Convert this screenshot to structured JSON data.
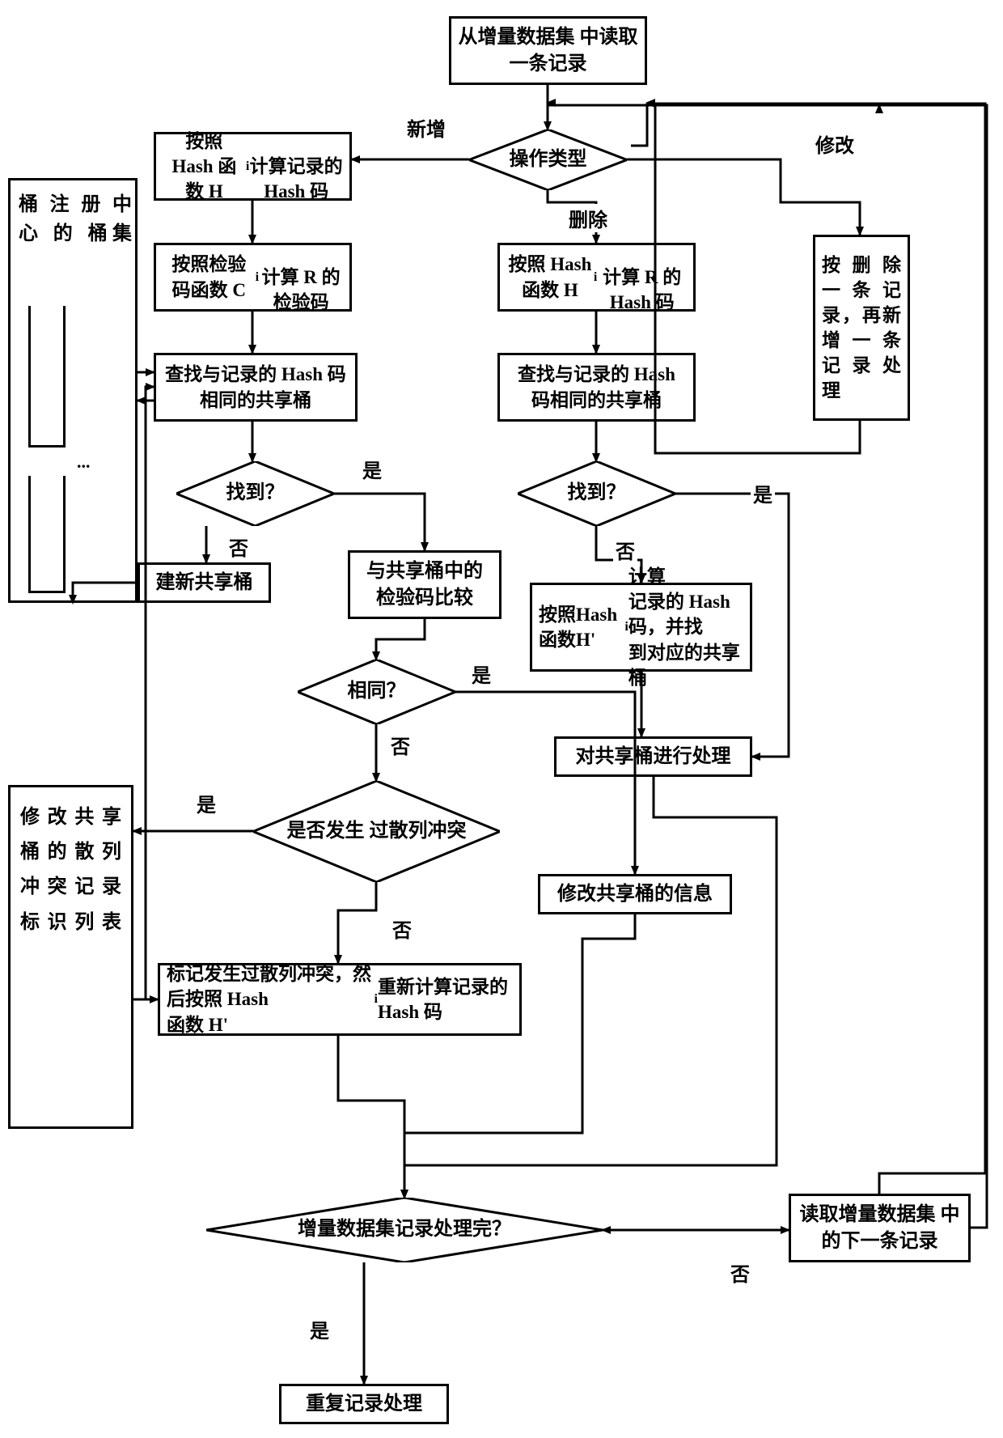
{
  "type": "flowchart",
  "background_color": "#ffffff",
  "border_color": "#000000",
  "border_width": 3,
  "font_family": "SimSun",
  "font_weight": "bold",
  "nodes": {
    "n_start": {
      "text": "从增量数据集\n中读取一条记录",
      "fontsize": 24
    },
    "n_op_type": {
      "text": "操作类型",
      "fontsize": 24
    },
    "n_new_hash": {
      "text_html": "按照 Hash 函数 H<sub>i</sub><br>计算记录的 Hash 码",
      "fontsize": 23
    },
    "n_new_check": {
      "text_html": "按照检验码函数 C<sub>i</sub><br>计算 R 的检验码",
      "fontsize": 23
    },
    "n_new_find": {
      "text": "查找与记录的 Hash\n码相同的共享桶",
      "fontsize": 23
    },
    "n_found1": {
      "text": "找到？",
      "fontsize": 24
    },
    "n_new_bucket": {
      "text": "建新共享桶",
      "fontsize": 24
    },
    "n_compare": {
      "text": "与共享桶中的\n检验码比较",
      "fontsize": 24
    },
    "n_same": {
      "text": "相同？",
      "fontsize": 24
    },
    "n_conflict": {
      "text": "是否发生\n过散列冲突",
      "fontsize": 24
    },
    "n_mark": {
      "text_html": "标记发生过散列冲突，然后按照 Hash<br>函数 H'<sub>i</sub> 重新计算记录的 Hash 码",
      "fontsize": 23
    },
    "n_del_hash": {
      "text_html": "按照 Hash 函数 H<sub>i</sub><br>计算 R 的 Hash 码",
      "fontsize": 23
    },
    "n_del_find": {
      "text": "查找与记录的 Hash\n码相同的共享桶",
      "fontsize": 23
    },
    "n_found2": {
      "text": "找到？",
      "fontsize": 24
    },
    "n_del_hash2": {
      "text_html": "按照Hash函数H'<sub>i</sub>计算<br>记录的 Hash 码，并找<br>到对应的共享桶",
      "fontsize": 23
    },
    "n_process_bucket": {
      "text": "对共享桶进行处理",
      "fontsize": 24
    },
    "n_modify_info": {
      "text": "修改共享桶的信息",
      "fontsize": 24
    },
    "n_modify_path": {
      "text": "按 删 除\n一 条 记\n录，再新\n增 一 条\n记 录 处\n理",
      "fontsize": 23
    },
    "n_done": {
      "text": "增量数据集记录处理完？",
      "fontsize": 24
    },
    "n_next": {
      "text": "读取增量数据集\n中的下一条记录",
      "fontsize": 24
    },
    "n_dup": {
      "text": "重复记录处理",
      "fontsize": 24
    },
    "bucket_label": {
      "text": "桶 注 册\n中 心 的\n桶集",
      "fontsize": 24
    },
    "conflict_list": {
      "text": "修 改 共 享\n桶 的 散 列\n冲 突 记 录\n标 识 列 表",
      "fontsize": 24
    }
  },
  "edge_labels": {
    "l_new": {
      "text": "新增",
      "fontsize": 24
    },
    "l_delete": {
      "text": "删除",
      "fontsize": 24
    },
    "l_modify": {
      "text": "修改",
      "fontsize": 24
    },
    "l_yes1": {
      "text": "是",
      "fontsize": 24
    },
    "l_no1": {
      "text": "否",
      "fontsize": 24
    },
    "l_yes2": {
      "text": "是",
      "fontsize": 24
    },
    "l_no2": {
      "text": "否",
      "fontsize": 24
    },
    "l_yes3": {
      "text": "是",
      "fontsize": 24
    },
    "l_no3": {
      "text": "否",
      "fontsize": 24
    },
    "l_yes4": {
      "text": "是",
      "fontsize": 24
    },
    "l_no4": {
      "text": "否",
      "fontsize": 24
    },
    "l_yes5": {
      "text": "是",
      "fontsize": 24
    },
    "l_no5": {
      "text": "否",
      "fontsize": 24
    }
  },
  "arrow_style": {
    "stroke": "#000000",
    "stroke_width": 3,
    "marker": "filled-triangle"
  }
}
